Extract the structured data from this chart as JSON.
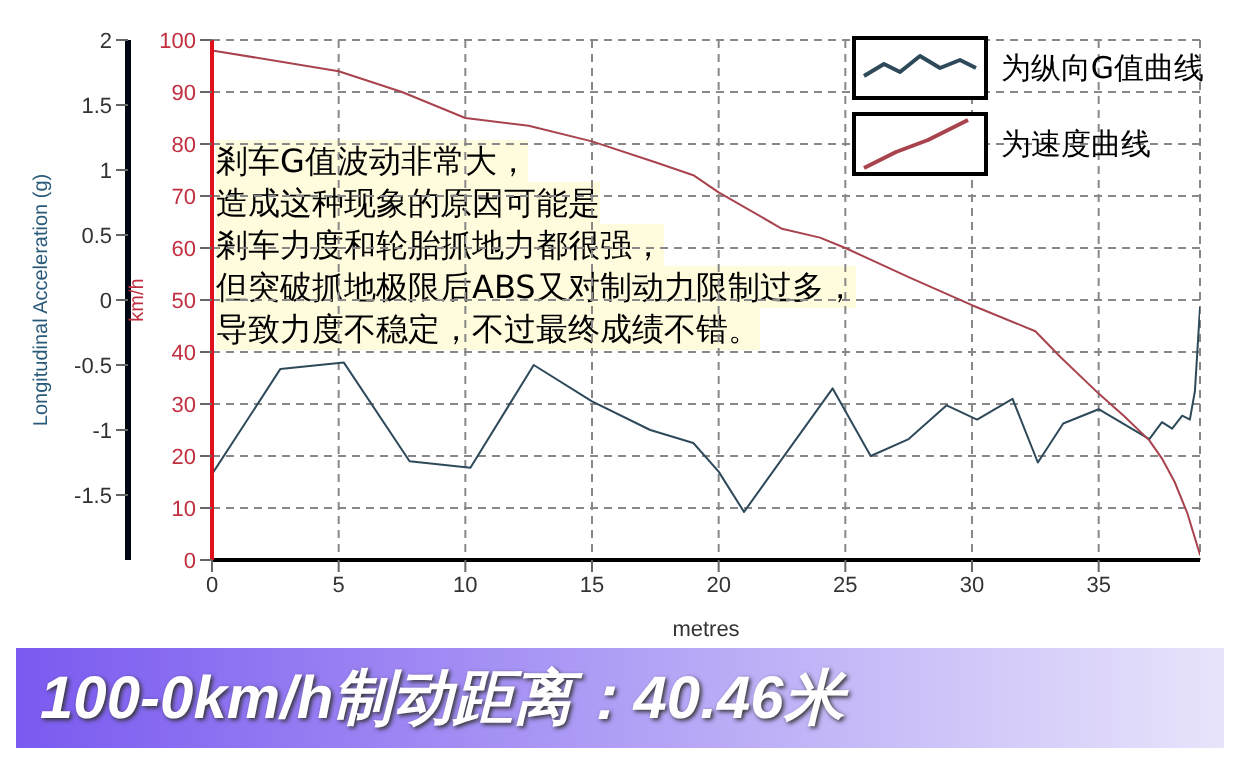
{
  "chart_data": {
    "type": "line",
    "title": "100-0km/h制动距离：40.46米",
    "xlabel": "metres",
    "ylabel": "Longitudinal Acceleration (g)",
    "y2label": "km/h",
    "xlim": [
      0,
      39
    ],
    "xticks": [
      0,
      5,
      10,
      15,
      20,
      25,
      30,
      35
    ],
    "ylim": [
      -2,
      2
    ],
    "yticks": [
      -1.5,
      -1,
      -0.5,
      0,
      0.5,
      1,
      1.5,
      2
    ],
    "y2lim": [
      0,
      100
    ],
    "y2ticks": [
      0,
      10,
      20,
      30,
      40,
      50,
      60,
      70,
      80,
      90,
      100
    ],
    "grid": true,
    "legend": "top right",
    "line_style": "solid",
    "marker": "none",
    "annotations": [
      "剎车G值波动非常大，",
      "造成这种现象的原因可能是",
      "剎车力度和轮胎抓地力都很强，",
      "但突破抓地极限后ABS又对制动力限制过多，",
      "导致力度不稳定，不过最终成绩不错。"
    ],
    "series": [
      {
        "name": "为纵向G值曲线",
        "color": "#2e4a5a",
        "x": [
          0,
          2.7,
          5.2,
          7.8,
          10.2,
          12.7,
          15,
          17.3,
          19,
          20,
          21,
          24.5,
          26,
          27.5,
          29,
          30.2,
          31.6,
          32.6,
          33.6,
          35,
          37,
          37.5,
          37.9,
          38.3,
          38.6,
          38.8,
          39
        ],
        "values": [
          -1.34,
          -0.53,
          -0.48,
          -1.24,
          -1.29,
          -0.5,
          -0.78,
          -1.0,
          -1.1,
          -1.32,
          -1.63,
          -0.68,
          -1.2,
          -1.07,
          -0.81,
          -0.92,
          -0.76,
          -1.25,
          -0.95,
          -0.84,
          -1.07,
          -0.94,
          -0.99,
          -0.89,
          -0.92,
          -0.7,
          -0.06
        ]
      },
      {
        "name": "为速度曲线",
        "color": "#a8434e",
        "axis": "y2",
        "x": [
          0,
          5,
          7.5,
          10,
          12.5,
          15,
          17.5,
          19,
          20,
          22.5,
          24,
          25,
          27.5,
          30,
          32.5,
          33.5,
          35,
          36,
          37,
          37.5,
          38,
          38.5,
          39
        ],
        "values": [
          98,
          94,
          90,
          85,
          83.5,
          80.5,
          76.5,
          74,
          70.7,
          63.7,
          62,
          60,
          54.4,
          49,
          44,
          39,
          32,
          27.7,
          23,
          19.5,
          15,
          9,
          1
        ]
      }
    ]
  }
}
